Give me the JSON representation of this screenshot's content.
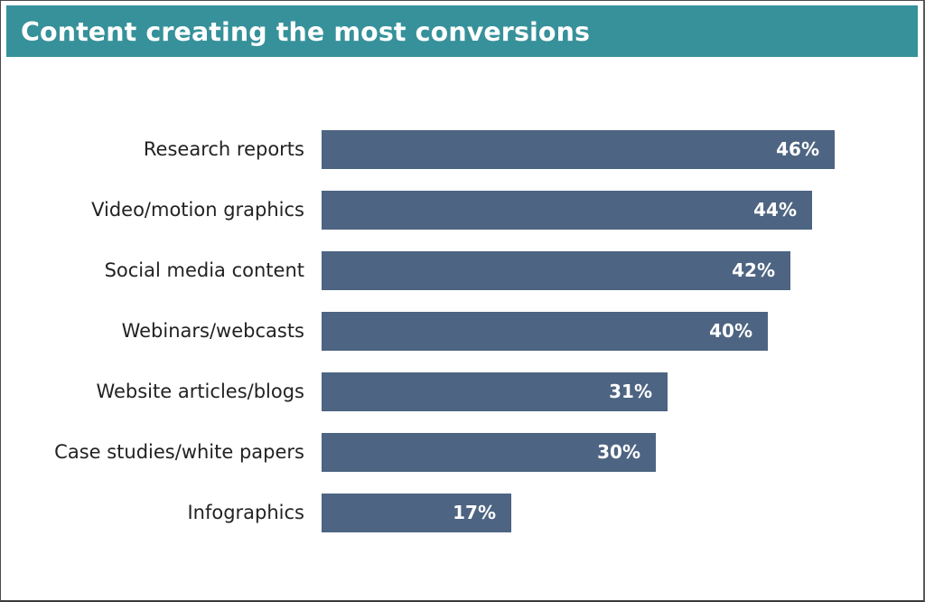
{
  "title": "Content creating the most conversions",
  "colors": {
    "header": "#36919a",
    "bar": "#4d6482",
    "label_text": "#222222",
    "value_text": "#ffffff"
  },
  "bars": [
    {
      "label": "Research reports",
      "value": 46,
      "value_label": "46%"
    },
    {
      "label": "Video/motion graphics",
      "value": 44,
      "value_label": "44%"
    },
    {
      "label": "Social media content",
      "value": 42,
      "value_label": "42%"
    },
    {
      "label": "Webinars/webcasts",
      "value": 40,
      "value_label": "40%"
    },
    {
      "label": "Website articles/blogs",
      "value": 31,
      "value_label": "31%"
    },
    {
      "label": "Case studies/white papers",
      "value": 30,
      "value_label": "30%"
    },
    {
      "label": "Infographics",
      "value": 17,
      "value_label": "17%"
    }
  ],
  "chart_data": {
    "type": "bar",
    "orientation": "horizontal",
    "title": "Content creating the most conversions",
    "categories": [
      "Research reports",
      "Video/motion graphics",
      "Social media content",
      "Webinars/webcasts",
      "Website articles/blogs",
      "Case studies/white papers",
      "Infographics"
    ],
    "values": [
      46,
      44,
      42,
      40,
      31,
      30,
      17
    ],
    "value_format": "percent",
    "xlabel": "",
    "ylabel": "",
    "grid": false,
    "legend": null,
    "data_labels": true
  }
}
